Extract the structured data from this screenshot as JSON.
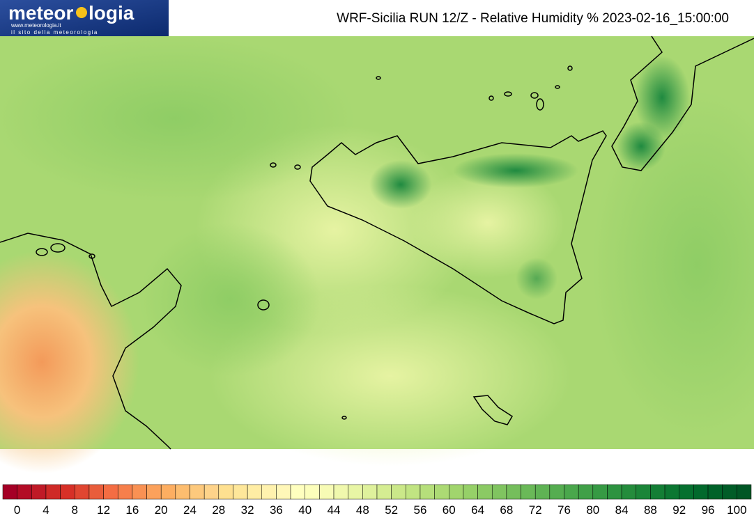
{
  "header": {
    "logo": {
      "text_left": "meteor",
      "text_right": "logia",
      "url": "www.meteorologia.it",
      "tagline": "il sito della meteorologia"
    },
    "title": "WRF-Sicilia RUN 12/Z - Relative Humidity % 2023-02-16_15:00:00"
  },
  "colorbar": {
    "ticks": [
      0,
      4,
      8,
      12,
      16,
      20,
      24,
      28,
      32,
      36,
      40,
      44,
      48,
      52,
      56,
      60,
      64,
      68,
      72,
      76,
      80,
      84,
      88,
      92,
      96,
      100
    ],
    "colors": [
      "#a50026",
      "#b30c26",
      "#c01a27",
      "#cf2a27",
      "#d73027",
      "#e04631",
      "#e95d3b",
      "#f46d43",
      "#f67f4b",
      "#f99153",
      "#fba15b",
      "#fdae61",
      "#fdbd6f",
      "#fdc97d",
      "#fed38a",
      "#fee090",
      "#fee79a",
      "#ffeda4",
      "#fff2ae",
      "#fff7b8",
      "#ffffbf",
      "#fcfebb",
      "#f7fbb5",
      "#f0f8ad",
      "#e8f5a5",
      "#dff19c",
      "#d5ed92",
      "#cbe889",
      "#c1e482",
      "#b6df7b",
      "#acda74",
      "#a1d56d",
      "#96d068",
      "#8bca64",
      "#80c460",
      "#75be5c",
      "#6ab958",
      "#5fb354",
      "#55ad50",
      "#4aa74c",
      "#40a048",
      "#369a44",
      "#2d9340",
      "#248c3c",
      "#1b8538",
      "#137e35",
      "#0c7732",
      "#06702f",
      "#02692c",
      "#006229",
      "#005c27",
      "#005625"
    ]
  }
}
